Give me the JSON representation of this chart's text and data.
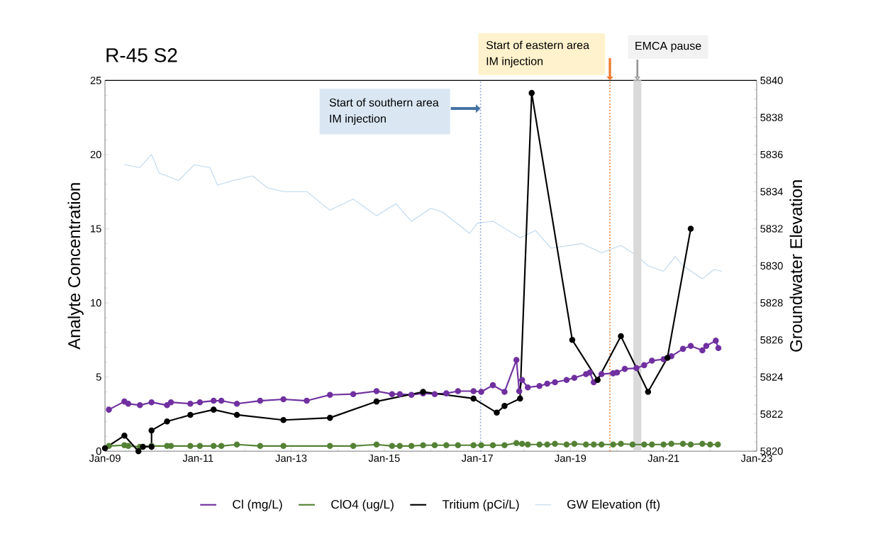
{
  "chart_data": {
    "type": "line",
    "title": "R-45 S2",
    "ylabel": "Analyte Concentration",
    "y2label": "Groundwater Elevation",
    "xlim": [
      "2009-01-01",
      "2023-01-01"
    ],
    "ylim": [
      0,
      25
    ],
    "y2lim": [
      5820,
      5840
    ],
    "xticks": [
      {
        "value": "2009-01-01",
        "label": "Jan-09"
      },
      {
        "value": "2011-01-01",
        "label": "Jan-11"
      },
      {
        "value": "2013-01-01",
        "label": "Jan-13"
      },
      {
        "value": "2015-01-01",
        "label": "Jan-15"
      },
      {
        "value": "2017-01-01",
        "label": "Jan-17"
      },
      {
        "value": "2019-01-01",
        "label": "Jan-19"
      },
      {
        "value": "2021-01-01",
        "label": "Jan-21"
      },
      {
        "value": "2023-01-01",
        "label": "Jan-23"
      }
    ],
    "yticks": [
      0,
      5,
      10,
      15,
      20,
      25
    ],
    "y2ticks": [
      5820,
      5822,
      5824,
      5826,
      5828,
      5830,
      5832,
      5834,
      5836,
      5838,
      5840
    ],
    "legend": "bottom",
    "marker": "circle",
    "series": [
      {
        "name": "Cl (mg/L)",
        "color": "#7030a0",
        "x": [
          "2009-02",
          "2009-06",
          "2009-07",
          "2009-10",
          "2010-01",
          "2010-05",
          "2010-06",
          "2010-11",
          "2011-01-15",
          "2011-05",
          "2011-07",
          "2011-11",
          "2012-05",
          "2012-11",
          "2013-05",
          "2013-11",
          "2014-05",
          "2014-11",
          "2015-03",
          "2015-05",
          "2015-08",
          "2015-11",
          "2016-02",
          "2016-05",
          "2016-08",
          "2016-12",
          "2017-02",
          "2017-05",
          "2017-08",
          "2017-11-03",
          "2017-11-25",
          "2017-12-17",
          "2018-02",
          "2018-05",
          "2018-07",
          "2018-09",
          "2018-12",
          "2019-02",
          "2019-05",
          "2019-06",
          "2019-07",
          "2019-09",
          "2019-12",
          "2020-01",
          "2020-03",
          "2020-06",
          "2020-08",
          "2020-10",
          "2021-01",
          "2021-03",
          "2021-06",
          "2021-08",
          "2021-11",
          "2021-12",
          "2022-02-15",
          "2022-03-05"
        ],
        "values": [
          2.8,
          3.35,
          3.2,
          3.1,
          3.3,
          3.1,
          3.3,
          3.2,
          3.3,
          3.4,
          3.4,
          3.2,
          3.4,
          3.5,
          3.4,
          3.8,
          3.85,
          4.05,
          3.85,
          3.85,
          3.8,
          3.9,
          3.85,
          3.9,
          4.05,
          4.05,
          4.0,
          4.45,
          4.0,
          6.15,
          4.05,
          4.8,
          4.3,
          4.4,
          4.55,
          4.65,
          4.8,
          4.95,
          5.2,
          5.3,
          4.65,
          5.2,
          5.25,
          5.3,
          5.55,
          5.6,
          5.8,
          6.1,
          6.2,
          6.4,
          6.9,
          7.1,
          6.8,
          7.1,
          7.45,
          6.95
        ]
      },
      {
        "name": "ClO4 (ug/L)",
        "color": "#548235",
        "x": [
          "2009-02",
          "2009-06",
          "2009-07",
          "2009-10",
          "2010-01",
          "2010-05",
          "2010-06",
          "2010-11",
          "2011-01-15",
          "2011-05",
          "2011-07",
          "2011-11",
          "2012-05",
          "2012-11",
          "2013-11",
          "2014-05",
          "2014-11",
          "2015-03",
          "2015-05",
          "2015-08",
          "2015-11",
          "2016-02",
          "2016-05",
          "2016-08",
          "2016-12",
          "2017-02",
          "2017-05",
          "2017-08",
          "2017-11-03",
          "2017-12-17",
          "2018-02",
          "2018-05",
          "2018-07",
          "2018-09",
          "2018-12",
          "2019-02",
          "2019-05",
          "2019-07",
          "2019-09",
          "2019-12",
          "2020-02",
          "2020-05",
          "2020-08",
          "2020-10",
          "2021-01",
          "2021-03",
          "2021-06",
          "2021-08",
          "2021-11",
          "2022-01",
          "2022-03"
        ],
        "values": [
          0.35,
          0.4,
          0.35,
          0.3,
          0.35,
          0.35,
          0.35,
          0.35,
          0.35,
          0.35,
          0.35,
          0.45,
          0.35,
          0.35,
          0.35,
          0.35,
          0.45,
          0.35,
          0.35,
          0.35,
          0.4,
          0.4,
          0.4,
          0.4,
          0.4,
          0.4,
          0.4,
          0.4,
          0.55,
          0.5,
          0.45,
          0.45,
          0.45,
          0.5,
          0.45,
          0.5,
          0.45,
          0.45,
          0.45,
          0.45,
          0.5,
          0.45,
          0.45,
          0.45,
          0.45,
          0.5,
          0.5,
          0.45,
          0.5,
          0.45,
          0.45
        ]
      },
      {
        "name": "Tritium (pCi/L)",
        "color": "#000000",
        "x": [
          "2009-01",
          "2009-06",
          "2009-09-20",
          "2009-10-25",
          "2010-01",
          "2010-01",
          "2010-05",
          "2010-11",
          "2011-05",
          "2011-11",
          "2012-11",
          "2013-11",
          "2014-11",
          "2015-11",
          "2016-12",
          "2017-06",
          "2017-08",
          "2017-12",
          "2018-03",
          "2019-01-15",
          "2019-08",
          "2020-02",
          "2020-09",
          "2021-02",
          "2021-08"
        ],
        "values": [
          0.2,
          1.05,
          0.0,
          0.3,
          0.3,
          1.4,
          2.0,
          2.45,
          2.8,
          2.45,
          2.1,
          2.25,
          3.35,
          4.0,
          3.55,
          2.6,
          3.05,
          3.55,
          24.15,
          7.5,
          4.8,
          7.75,
          4.0,
          6.3,
          15.0
        ]
      },
      {
        "name": "GW Elevation (ft)",
        "color": "#bdd7ee",
        "axis": "y2",
        "marker": "none",
        "x": [
          "2009-06",
          "2009-10",
          "2010-01",
          "2010-03",
          "2010-08",
          "2010-12",
          "2011-04",
          "2011-06",
          "2011-10",
          "2012-03",
          "2012-07",
          "2012-11",
          "2013-05",
          "2013-11",
          "2014-05",
          "2014-11",
          "2015-04",
          "2015-08",
          "2016-01",
          "2016-04",
          "2016-11",
          "2017-01",
          "2017-05",
          "2017-09",
          "2017-12",
          "2018-04",
          "2018-08",
          "2019-04",
          "2019-09",
          "2020-02",
          "2020-05",
          "2020-09",
          "2021-01",
          "2021-04",
          "2021-06",
          "2021-11",
          "2022-02",
          "2022-04"
        ],
        "values": [
          5835.45,
          5835.3,
          5836.0,
          5835.0,
          5834.6,
          5835.45,
          5835.3,
          5834.35,
          5834.6,
          5834.85,
          5834.2,
          5834.0,
          5834.0,
          5833.0,
          5833.6,
          5832.7,
          5833.35,
          5832.4,
          5833.1,
          5832.9,
          5831.75,
          5832.3,
          5832.4,
          5831.9,
          5831.5,
          5831.9,
          5830.95,
          5831.2,
          5830.7,
          5831.1,
          5830.7,
          5830.0,
          5829.7,
          5830.5,
          5830.0,
          5829.3,
          5829.8,
          5829.7
        ]
      }
    ],
    "ref_lines": [
      {
        "axis": "x",
        "value": "2017-01-26",
        "label": "Start of southern area IM injection",
        "color": "#8faadc",
        "line_style": "dotted"
      },
      {
        "axis": "x",
        "value": "2019-11-06",
        "label": "Start of eastern area IM injection",
        "color": "#ed7d31",
        "line_style": "dotted"
      }
    ],
    "bands": [
      {
        "axis": "x",
        "from": "2020-05-08",
        "to": "2020-07-09",
        "label": "EMCA pause",
        "color": "#d9d9d9"
      }
    ]
  }
}
